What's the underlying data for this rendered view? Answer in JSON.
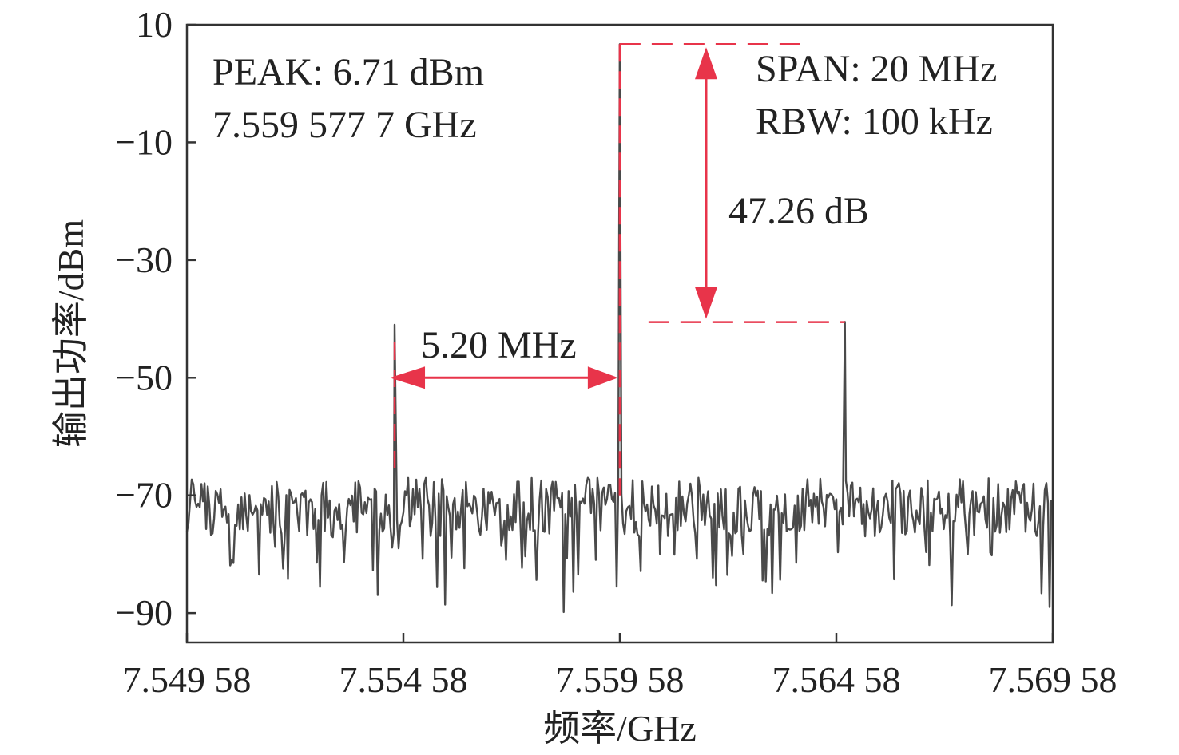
{
  "chart_data": {
    "type": "line",
    "xlabel": "频率/GHz",
    "ylabel": "输出功率/dBm",
    "xlim": [
      7.54958,
      7.56958
    ],
    "ylim": [
      -95,
      10
    ],
    "x_ticks": [
      7.54958,
      7.55458,
      7.55958,
      7.56458,
      7.56958
    ],
    "x_tick_labels": [
      "7.549 58",
      "7.554 58",
      "7.559 58",
      "7.564 58",
      "7.569 58"
    ],
    "y_ticks": [
      10,
      -10,
      -30,
      -50,
      -70,
      -90
    ],
    "y_tick_labels": [
      "10",
      "−10",
      "−30",
      "−50",
      "−70",
      "−90"
    ],
    "grid": false,
    "series": [
      {
        "color": "#4a4a4a",
        "noise_floor_dbm": -72,
        "peaks": [
          {
            "x": 7.5543777,
            "y": -41
          },
          {
            "x": 7.5595777,
            "y": 6.71
          },
          {
            "x": 7.5647777,
            "y": -40.5
          }
        ]
      }
    ],
    "annotations": {
      "peak_line1": "PEAK: 6.71 dBm",
      "peak_line2": "7.559 577 7 GHz",
      "span_line": "SPAN: 20 MHz",
      "rbw_line": "RBW: 100 kHz",
      "delta_db": "47.26 dB",
      "delta_freq": "5.20 MHz",
      "marker_color": "#e8344a",
      "delta_db_levels": [
        6.71,
        -40.55
      ],
      "delta_freq_x": [
        7.5543777,
        7.5595777
      ]
    }
  }
}
